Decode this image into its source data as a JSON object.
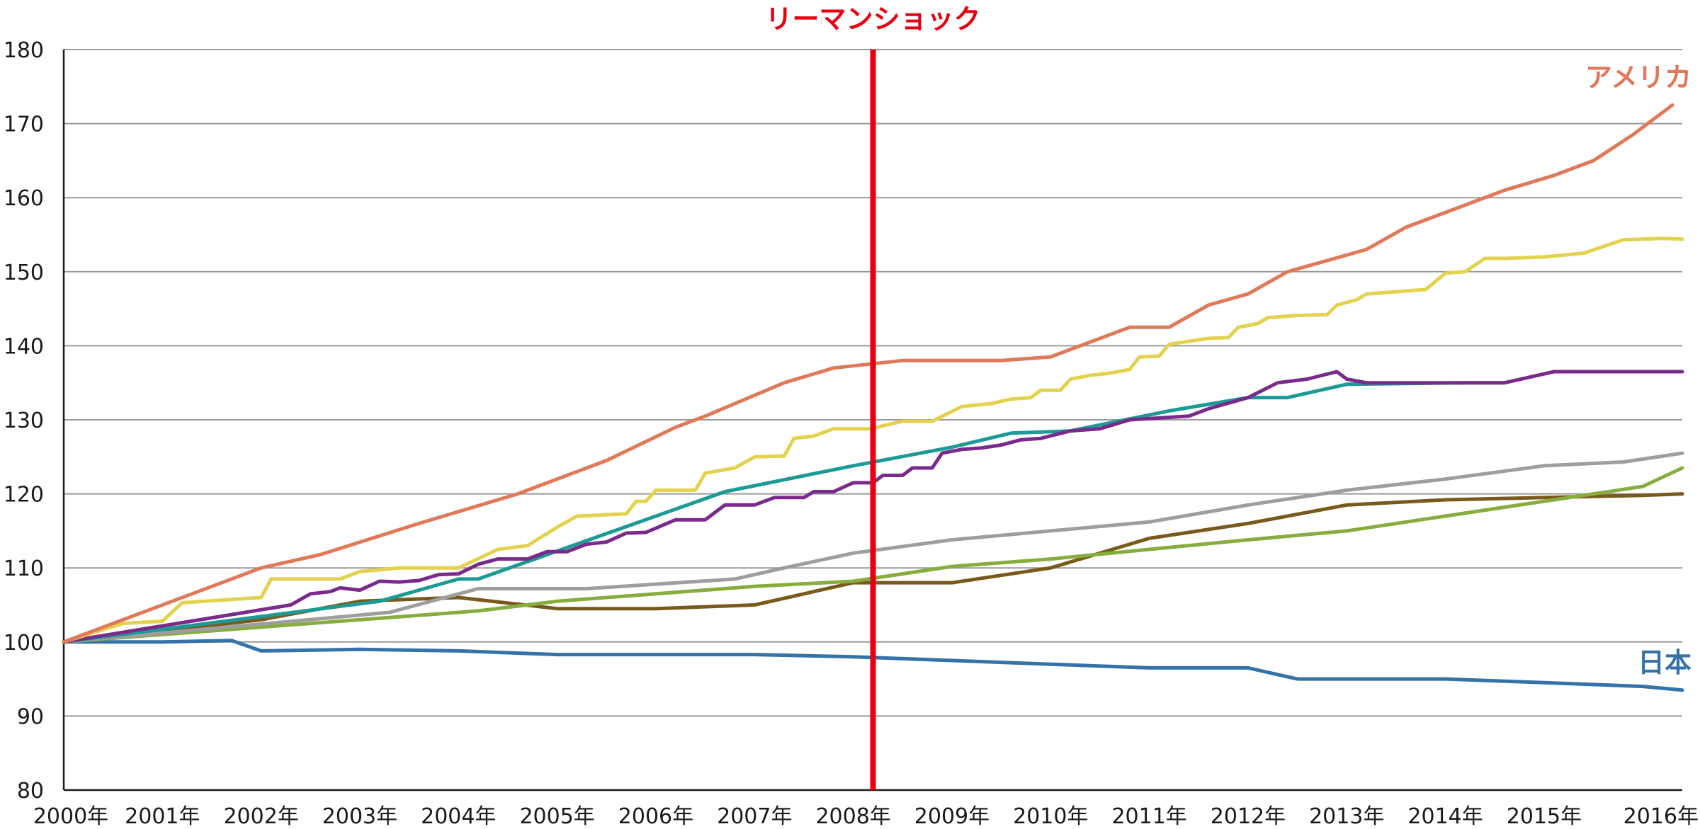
{
  "chart_data": {
    "type": "line",
    "title": "",
    "xlabel": "",
    "ylabel": "",
    "xlim": [
      2000,
      2016
    ],
    "ylim": [
      80,
      180
    ],
    "y_ticks": [
      80,
      90,
      100,
      110,
      120,
      130,
      140,
      150,
      160,
      170,
      180
    ],
    "x_tick_labels": [
      "2000年",
      "2001年",
      "2002年",
      "2003年",
      "2004年",
      "2005年",
      "2006年",
      "2007年",
      "2008年",
      "2009年",
      "2010年",
      "2011年",
      "2012年",
      "2013年",
      "2014年",
      "2015年",
      "2016年"
    ],
    "grid": "horizontal",
    "event": {
      "label": "リーマンショック",
      "x": 8.2,
      "color": "#e60012"
    },
    "series": [
      {
        "name": "アメリカ",
        "color": "#e0795a",
        "label_color": "#e0795a",
        "points": [
          [
            0,
            100
          ],
          [
            2,
            110
          ],
          [
            2.6,
            111.8
          ],
          [
            3.6,
            116
          ],
          [
            4.6,
            120
          ],
          [
            5.2,
            123
          ],
          [
            5.5,
            124.5
          ],
          [
            6.2,
            129
          ],
          [
            6.5,
            130.5
          ],
          [
            7.3,
            135
          ],
          [
            7.8,
            137
          ],
          [
            8.5,
            138
          ],
          [
            9,
            138
          ],
          [
            9.5,
            138
          ],
          [
            10,
            138.5
          ],
          [
            10.4,
            140.5
          ],
          [
            10.8,
            142.5
          ],
          [
            11.2,
            142.5
          ],
          [
            11.6,
            145.5
          ],
          [
            12,
            147
          ],
          [
            12.4,
            150
          ],
          [
            12.8,
            151.5
          ],
          [
            13.2,
            153
          ],
          [
            13.6,
            156
          ],
          [
            14,
            158
          ],
          [
            14.3,
            159.5
          ],
          [
            14.6,
            161
          ],
          [
            15.1,
            163
          ],
          [
            15.5,
            165
          ],
          [
            15.9,
            168.5
          ],
          [
            16.3,
            172.5
          ]
        ]
      },
      {
        "name": "",
        "color": "#e2d24e",
        "points": [
          [
            0,
            100
          ],
          [
            0.6,
            102.5
          ],
          [
            1,
            102.8
          ],
          [
            1.2,
            105.3
          ],
          [
            2,
            106
          ],
          [
            2.1,
            108.5
          ],
          [
            2.8,
            108.5
          ],
          [
            3,
            109.5
          ],
          [
            3.4,
            110
          ],
          [
            4,
            110
          ],
          [
            4.4,
            112.5
          ],
          [
            4.7,
            113
          ],
          [
            5,
            115.5
          ],
          [
            5.2,
            117
          ],
          [
            5.7,
            117.3
          ],
          [
            5.8,
            119
          ],
          [
            5.9,
            119
          ],
          [
            6,
            120.5
          ],
          [
            6.4,
            120.5
          ],
          [
            6.5,
            122.8
          ],
          [
            6.8,
            123.5
          ],
          [
            7,
            125
          ],
          [
            7.3,
            125.1
          ],
          [
            7.4,
            127.5
          ],
          [
            7.6,
            127.8
          ],
          [
            7.8,
            128.8
          ],
          [
            8.2,
            128.8
          ],
          [
            8.3,
            129.2
          ],
          [
            8.5,
            129.8
          ],
          [
            8.8,
            129.8
          ],
          [
            9.1,
            131.8
          ],
          [
            9.4,
            132.2
          ],
          [
            9.6,
            132.8
          ],
          [
            9.8,
            133
          ],
          [
            9.9,
            134
          ],
          [
            10.1,
            134
          ],
          [
            10.2,
            135.5
          ],
          [
            10.4,
            136
          ],
          [
            10.6,
            136.3
          ],
          [
            10.8,
            136.8
          ],
          [
            10.9,
            138.5
          ],
          [
            11.1,
            138.6
          ],
          [
            11.2,
            140.2
          ],
          [
            11.6,
            141
          ],
          [
            11.8,
            141.1
          ],
          [
            11.9,
            142.5
          ],
          [
            12.1,
            143
          ],
          [
            12.2,
            143.8
          ],
          [
            12.5,
            144.1
          ],
          [
            12.8,
            144.2
          ],
          [
            12.9,
            145.5
          ],
          [
            13.1,
            146.2
          ],
          [
            13.2,
            147
          ],
          [
            13.4,
            147.2
          ],
          [
            13.6,
            147.4
          ],
          [
            13.8,
            147.6
          ],
          [
            14,
            149.8
          ],
          [
            14.2,
            150
          ],
          [
            14.4,
            151.8
          ],
          [
            14.6,
            151.8
          ],
          [
            15,
            152
          ],
          [
            15.4,
            152.5
          ],
          [
            15.8,
            154.3
          ],
          [
            16.2,
            154.5
          ],
          [
            16.4,
            154.4
          ]
        ]
      },
      {
        "name": "",
        "color": "#7a2a8a",
        "points": [
          [
            0,
            100
          ],
          [
            2.3,
            105
          ],
          [
            2.5,
            106.5
          ],
          [
            2.7,
            106.8
          ],
          [
            2.8,
            107.3
          ],
          [
            3,
            107
          ],
          [
            3.2,
            108.2
          ],
          [
            3.4,
            108.1
          ],
          [
            3.6,
            108.3
          ],
          [
            3.8,
            109.1
          ],
          [
            4,
            109.2
          ],
          [
            4.2,
            110.5
          ],
          [
            4.4,
            111.2
          ],
          [
            4.7,
            111.2
          ],
          [
            4.9,
            112.2
          ],
          [
            5.1,
            112.2
          ],
          [
            5.3,
            113.2
          ],
          [
            5.5,
            113.5
          ],
          [
            5.7,
            114.7
          ],
          [
            5.9,
            114.8
          ],
          [
            6.2,
            116.5
          ],
          [
            6.5,
            116.5
          ],
          [
            6.7,
            118.5
          ],
          [
            7,
            118.5
          ],
          [
            7.2,
            119.5
          ],
          [
            7.5,
            119.5
          ],
          [
            7.6,
            120.3
          ],
          [
            7.8,
            120.3
          ],
          [
            8,
            121.5
          ],
          [
            8.2,
            121.5
          ],
          [
            8.3,
            122.5
          ],
          [
            8.5,
            122.5
          ],
          [
            8.6,
            123.5
          ],
          [
            8.8,
            123.5
          ],
          [
            8.9,
            125.5
          ],
          [
            9.1,
            126
          ],
          [
            9.3,
            126.2
          ],
          [
            9.5,
            126.6
          ],
          [
            9.7,
            127.3
          ],
          [
            9.9,
            127.5
          ],
          [
            10.2,
            128.5
          ],
          [
            10.5,
            128.8
          ],
          [
            10.8,
            130
          ],
          [
            11.4,
            130.5
          ],
          [
            11.6,
            131.5
          ],
          [
            12,
            133
          ],
          [
            12.3,
            135
          ],
          [
            12.6,
            135.5
          ],
          [
            12.9,
            136.5
          ],
          [
            13,
            135.5
          ],
          [
            13.2,
            135
          ],
          [
            14,
            135
          ],
          [
            14.4,
            135
          ],
          [
            14.6,
            135
          ],
          [
            15.1,
            136.5
          ],
          [
            15.6,
            136.5
          ],
          [
            16,
            136.5
          ],
          [
            16.4,
            136.5
          ]
        ]
      },
      {
        "name": "",
        "color": "#1c9a96",
        "points": [
          [
            0,
            100
          ],
          [
            3.2,
            105.5
          ],
          [
            4,
            108.5
          ],
          [
            4.2,
            108.5
          ],
          [
            6.7,
            120.3
          ],
          [
            8,
            123.8
          ],
          [
            9,
            126.3
          ],
          [
            9.6,
            128.2
          ],
          [
            10.2,
            128.5
          ],
          [
            11.2,
            131.2
          ],
          [
            12,
            133
          ],
          [
            12.4,
            133
          ],
          [
            13,
            134.8
          ],
          [
            14.2,
            135
          ],
          [
            14.6,
            135
          ]
        ]
      },
      {
        "name": "",
        "color": "#9e9e9e",
        "points": [
          [
            0,
            100
          ],
          [
            3.3,
            104
          ],
          [
            4.2,
            107.2
          ],
          [
            5.3,
            107.2
          ],
          [
            6.8,
            108.5
          ],
          [
            7.3,
            110
          ],
          [
            8,
            112
          ],
          [
            9,
            113.8
          ],
          [
            10,
            115
          ],
          [
            11,
            116.2
          ],
          [
            12,
            118.5
          ],
          [
            13,
            120.5
          ],
          [
            14,
            122
          ],
          [
            15,
            123.8
          ],
          [
            15.8,
            124.3
          ],
          [
            16.4,
            125.5
          ]
        ]
      },
      {
        "name": "",
        "color": "#86ad3e",
        "points": [
          [
            0,
            100
          ],
          [
            1,
            101
          ],
          [
            3,
            103
          ],
          [
            4.2,
            104.2
          ],
          [
            5,
            105.5
          ],
          [
            6,
            106.5
          ],
          [
            7,
            107.5
          ],
          [
            8,
            108.2
          ],
          [
            9,
            110.2
          ],
          [
            10,
            111.2
          ],
          [
            11,
            112.5
          ],
          [
            12,
            113.8
          ],
          [
            13,
            115
          ],
          [
            14,
            117
          ],
          [
            15,
            119
          ],
          [
            16,
            121
          ],
          [
            16.4,
            123.5
          ]
        ]
      },
      {
        "name": "",
        "color": "#7a5a1c",
        "points": [
          [
            0,
            100
          ],
          [
            2,
            103
          ],
          [
            3,
            105.5
          ],
          [
            4,
            106
          ],
          [
            5,
            104.5
          ],
          [
            6,
            104.5
          ],
          [
            7,
            105
          ],
          [
            8,
            108
          ],
          [
            9,
            108
          ],
          [
            10,
            110
          ],
          [
            11,
            114
          ],
          [
            12,
            116
          ],
          [
            13,
            118.5
          ],
          [
            14,
            119.2
          ],
          [
            15,
            119.5
          ],
          [
            16,
            119.8
          ],
          [
            16.4,
            120
          ]
        ]
      },
      {
        "name": "日本",
        "color": "#3472a8",
        "label_color": "#3472a8",
        "points": [
          [
            0,
            100
          ],
          [
            1,
            100
          ],
          [
            1.7,
            100.2
          ],
          [
            2,
            98.8
          ],
          [
            3,
            99
          ],
          [
            4,
            98.8
          ],
          [
            5,
            98.3
          ],
          [
            6,
            98.3
          ],
          [
            7,
            98.3
          ],
          [
            8,
            98
          ],
          [
            9,
            97.5
          ],
          [
            10,
            97
          ],
          [
            11,
            96.5
          ],
          [
            12,
            96.5
          ],
          [
            12.5,
            95
          ],
          [
            13,
            95
          ],
          [
            14,
            95
          ],
          [
            15,
            94.5
          ],
          [
            16,
            94
          ],
          [
            16.4,
            93.5
          ]
        ]
      }
    ]
  }
}
